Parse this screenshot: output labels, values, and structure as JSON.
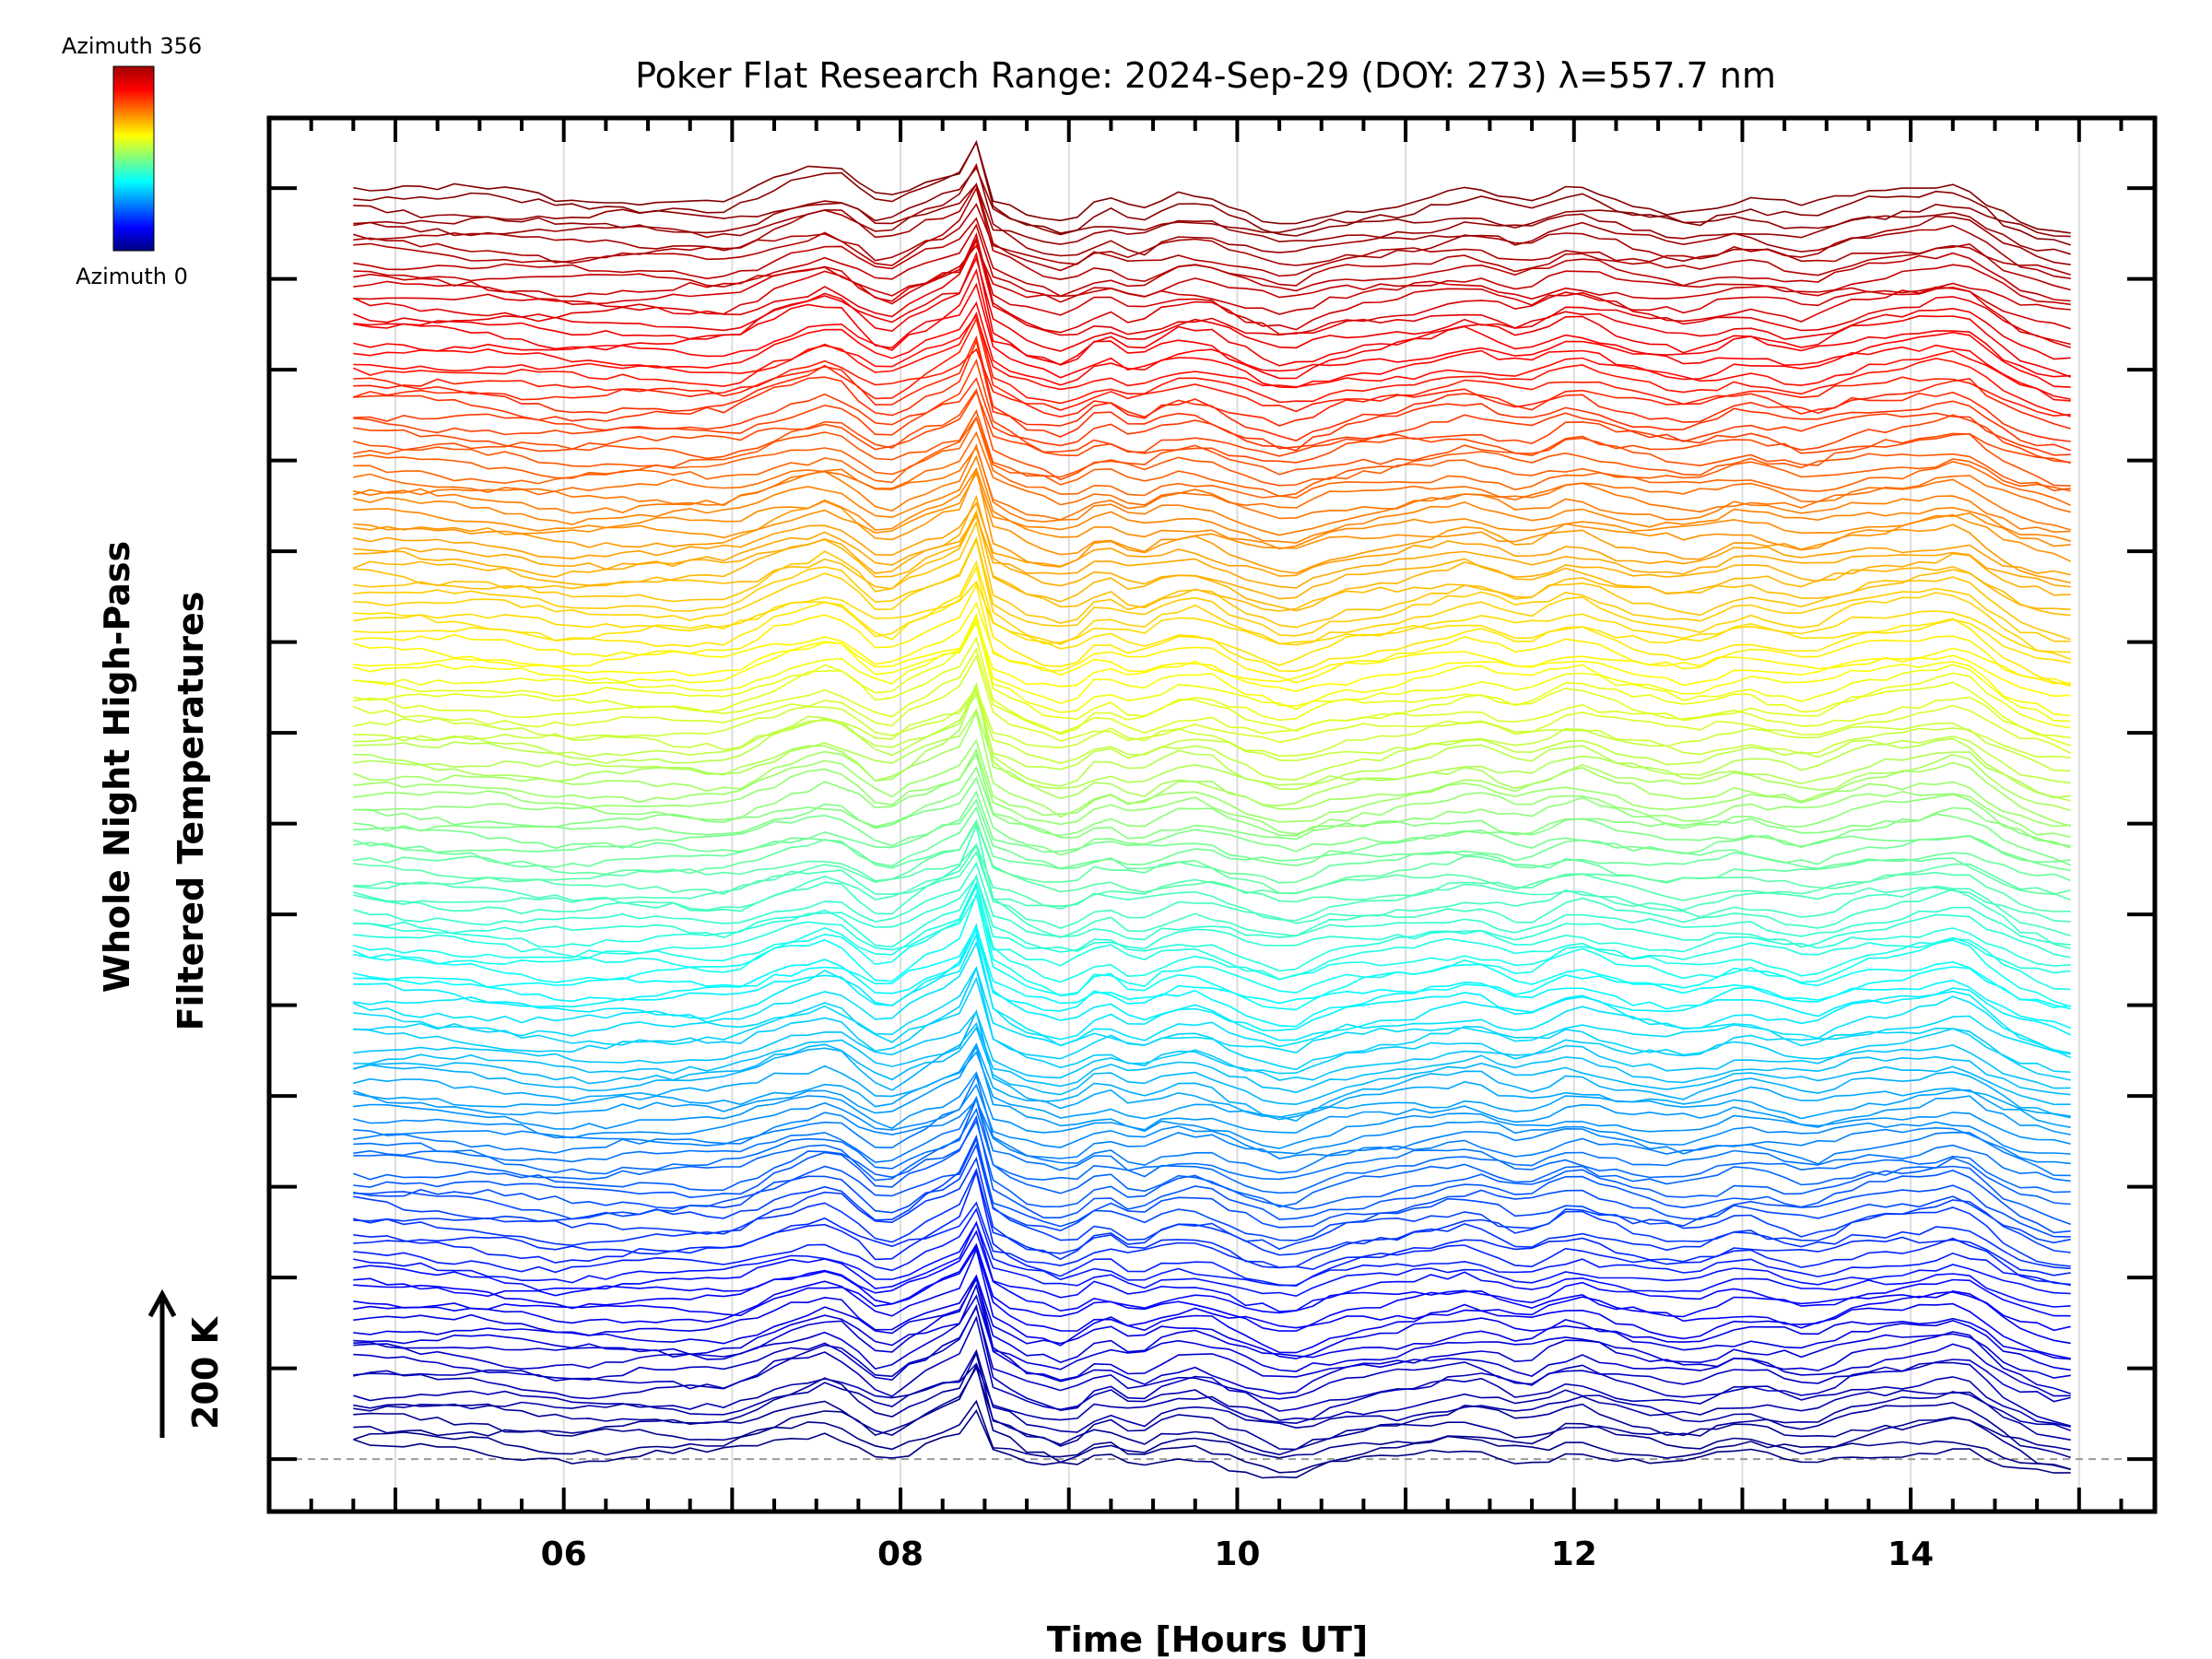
{
  "chart_data": {
    "type": "line",
    "title": "Poker Flat Research Range: 2024-Sep-29 (DOY: 273) λ=557.7 nm",
    "xlabel": "Time [Hours UT]",
    "ylabel_line1": "Whole Night High-Pass",
    "ylabel_line2": "Filtered Temperatures",
    "scale_bar_label": "200 K",
    "colorbar": {
      "top_label": "Azimuth 356",
      "bottom_label": "Azimuth 0",
      "min": 0,
      "max": 356
    },
    "x_tick_labels": [
      "06",
      "08",
      "10",
      "12",
      "14"
    ],
    "x_ticks": [
      6,
      8,
      10,
      12,
      14
    ],
    "xlim": [
      4.25,
      15.45
    ],
    "x_start": 4.75,
    "x_end": 14.9,
    "x_step": 0.1,
    "grid": true,
    "stacked_series": 140,
    "azimuth_step": 2.56,
    "vertical_offset_K": 31,
    "ylim_K": [
      -180,
      4600
    ],
    "baseline_K": 0,
    "series_shape_keypoints": {
      "x": [
        4.75,
        5.5,
        6.0,
        6.5,
        7.0,
        7.3,
        7.6,
        7.9,
        8.1,
        8.35,
        8.45,
        8.55,
        8.75,
        9.0,
        9.2,
        9.4,
        9.6,
        9.8,
        10.0,
        10.3,
        10.6,
        11.0,
        11.4,
        11.7,
        12.0,
        12.3,
        12.7,
        13.0,
        13.4,
        13.7,
        14.0,
        14.3,
        14.6,
        14.9
      ],
      "y": [
        55,
        35,
        10,
        20,
        15,
        80,
        120,
        0,
        65,
        125,
        230,
        30,
        -25,
        -60,
        15,
        -40,
        10,
        15,
        -30,
        -75,
        -20,
        5,
        40,
        -10,
        50,
        5,
        -25,
        20,
        -25,
        25,
        40,
        70,
        -40,
        -90
      ]
    }
  }
}
